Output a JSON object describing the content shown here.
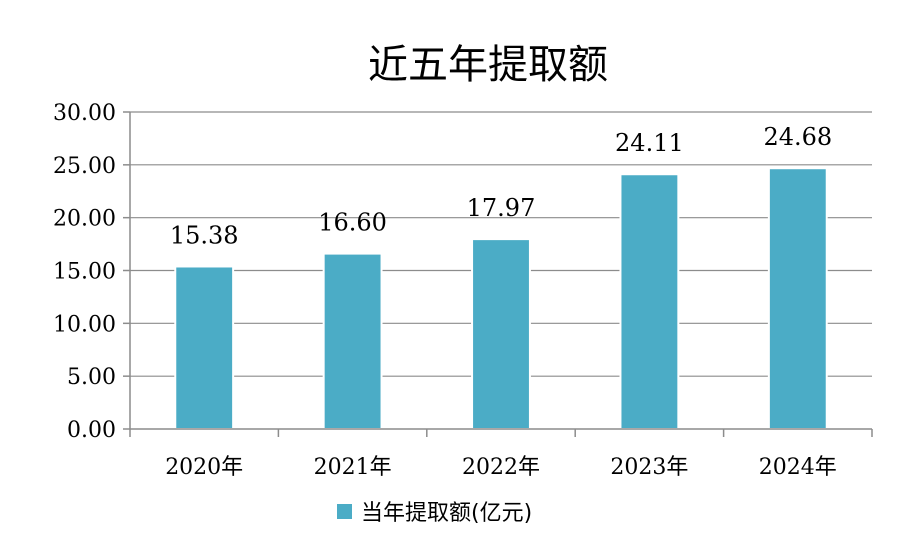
{
  "chart_data": {
    "type": "bar",
    "title": "近五年提取额",
    "categories": [
      "2020年",
      "2021年",
      "2022年",
      "2023年",
      "2024年"
    ],
    "series": [
      {
        "name": "当年提取额(亿元)",
        "values": [
          15.38,
          16.6,
          17.97,
          24.11,
          24.68
        ],
        "color": "#4BACC6"
      }
    ],
    "data_labels": [
      "15.38",
      "16.60",
      "17.97",
      "24.11",
      "24.68"
    ],
    "yticks": [
      "0.00",
      "5.00",
      "10.00",
      "15.00",
      "20.00",
      "25.00",
      "30.00"
    ],
    "ylim": [
      0,
      30
    ],
    "ystep": 5,
    "grid": true,
    "legend_position": "bottom",
    "xlabel": "",
    "ylabel": ""
  }
}
